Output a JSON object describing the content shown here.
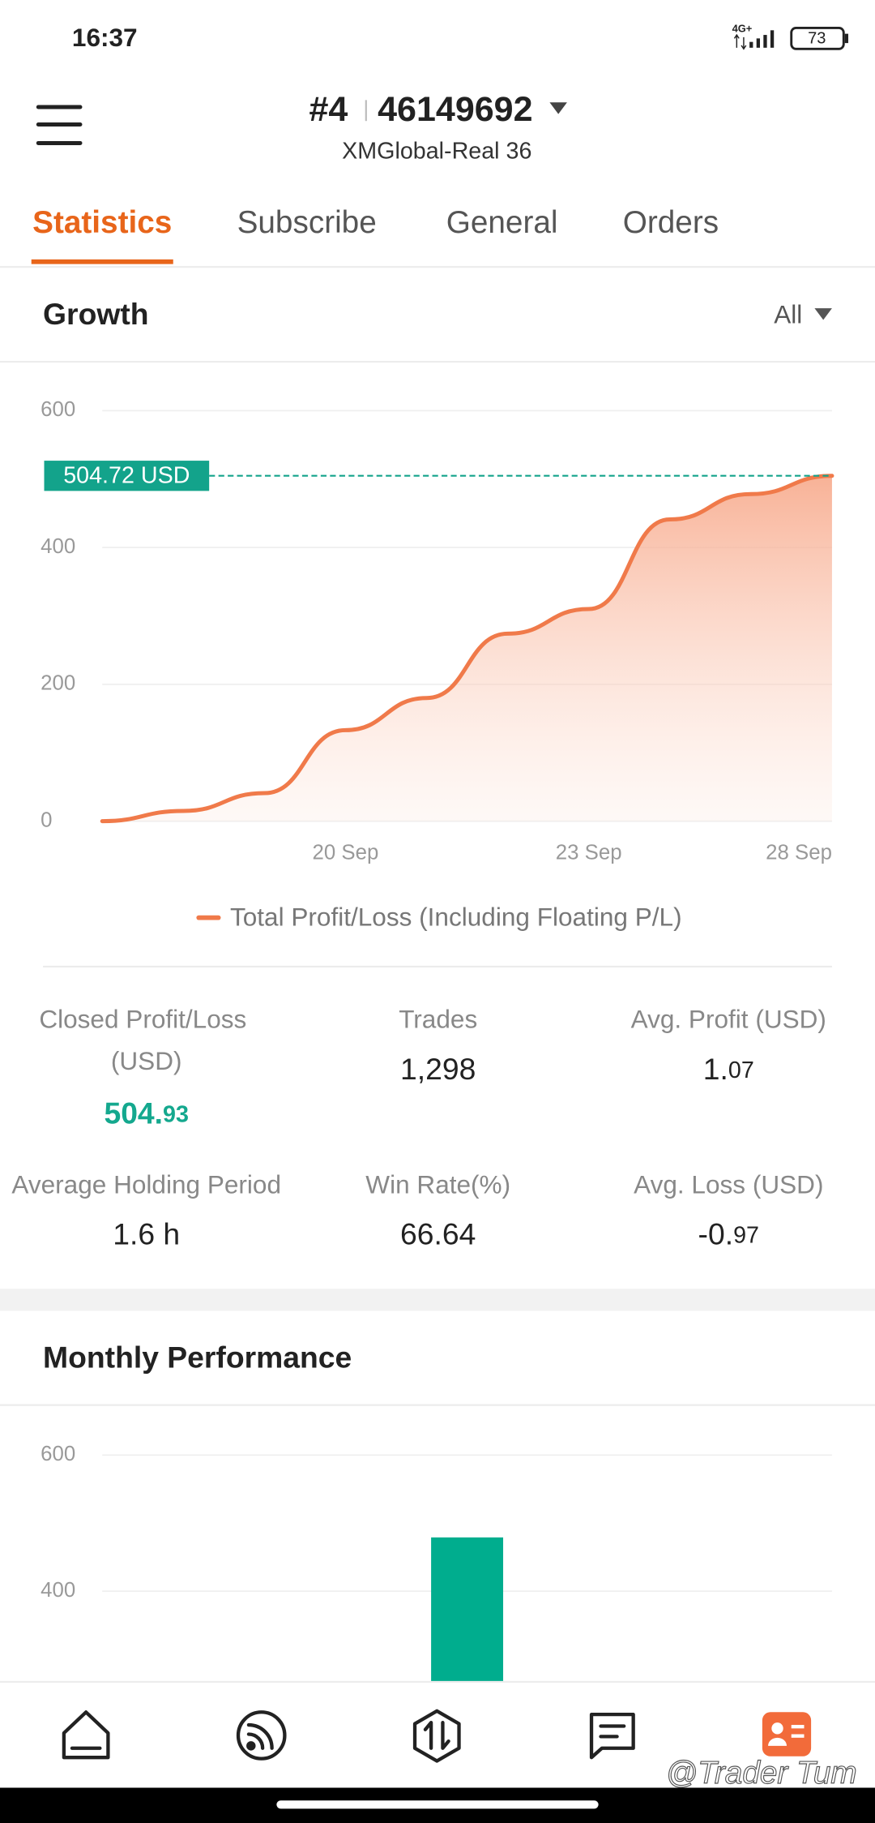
{
  "status_bar": {
    "time": "16:37",
    "network": "4G+",
    "battery": "73"
  },
  "header": {
    "account_number": "#4",
    "account_id": "46149692",
    "server": "XMGlobal-Real 36"
  },
  "tabs": {
    "items": [
      "Statistics",
      "Subscribe",
      "General",
      "Orders"
    ],
    "active": 0
  },
  "growth": {
    "title": "Growth",
    "period": "All",
    "chart_data": {
      "type": "line",
      "categories": [
        null,
        null,
        null,
        "20 Sep",
        null,
        null,
        "23 Sep",
        null,
        null,
        "28 Sep"
      ],
      "series": [
        {
          "name": "Total Profit/Loss (Including Floating P/L)",
          "color": "#f07a4a",
          "values": [
            0,
            15,
            41,
            133,
            180,
            274,
            310,
            441,
            478,
            504.72
          ]
        }
      ],
      "ylim": [
        0,
        600
      ],
      "yticks": [
        0,
        200,
        400,
        600
      ],
      "grid": true,
      "annotation": {
        "value": 504.72,
        "label": "504.72 USD",
        "color": "#13a38b"
      }
    }
  },
  "stats": [
    {
      "label": "Closed Profit/Loss (USD)",
      "value": "504.93",
      "color": "#14a88e",
      "small_decimals": true
    },
    {
      "label": "Trades",
      "value": "1,298"
    },
    {
      "label": "Avg. Profit (USD)",
      "value": "1.07",
      "small_decimals": true
    },
    {
      "label": "Average Holding Period",
      "value": "1.6 h"
    },
    {
      "label": "Win Rate(%)",
      "value": "66.64"
    },
    {
      "label": "Avg. Loss (USD)",
      "value": "-0.97",
      "small_decimals": true
    }
  ],
  "monthly": {
    "title": "Monthly Performance",
    "chart_data": {
      "type": "bar",
      "categories": [
        null
      ],
      "values": [
        479
      ],
      "color": "#00ad8e",
      "ylim": [
        0,
        600
      ],
      "yticks": [
        400,
        600
      ],
      "grid": true
    }
  },
  "watermark": "@Trader Tum"
}
